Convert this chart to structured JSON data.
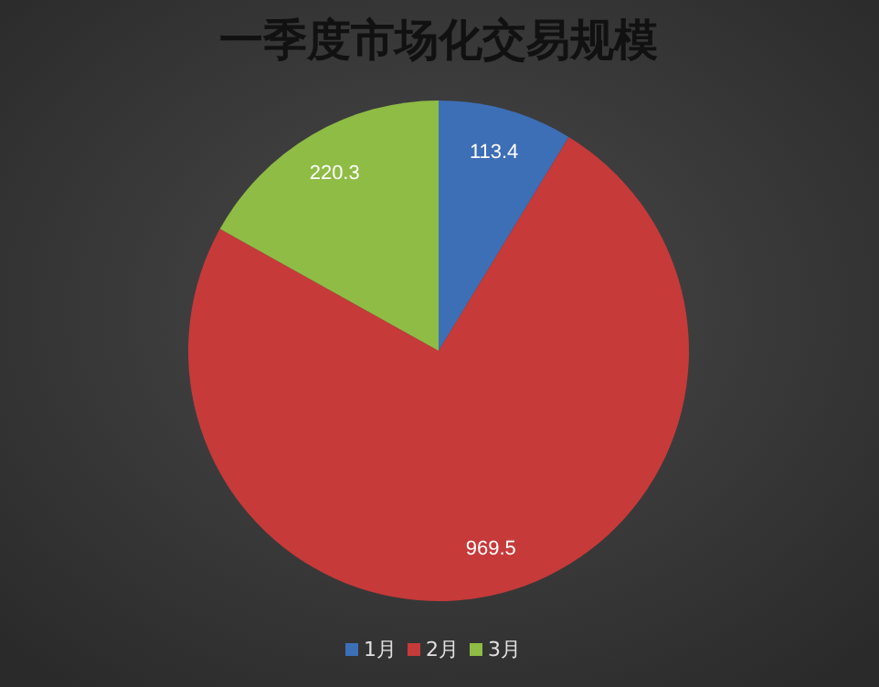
{
  "chart_data": {
    "type": "pie",
    "title": "一季度市场化交易规模",
    "categories": [
      "1月",
      "2月",
      "3月"
    ],
    "values": [
      113.4,
      969.5,
      220.3
    ],
    "colors": [
      "#3d6fb6",
      "#c63a3a",
      "#8fbc45"
    ],
    "data_labels": true,
    "legend": "bottom"
  }
}
